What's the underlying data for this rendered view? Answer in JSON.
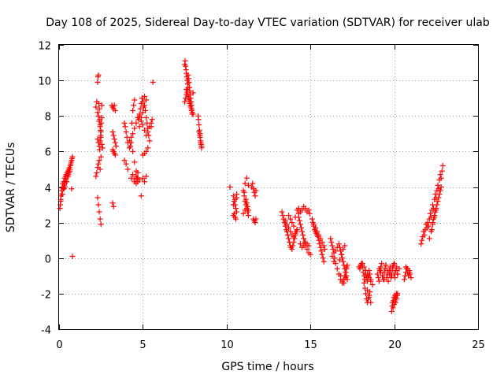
{
  "chart_data": {
    "type": "scatter",
    "title": "Day 108 of 2025, Sidereal Day-to-day VTEC variation (SDTVAR) for receiver ulab",
    "xlabel": "GPS time / hours",
    "ylabel": "SDTVAR / TECUs",
    "xlim": [
      0,
      25
    ],
    "ylim": [
      -4,
      12
    ],
    "xticks": [
      0,
      5,
      10,
      15,
      20,
      25
    ],
    "yticks": [
      -4,
      -2,
      0,
      2,
      4,
      6,
      8,
      10,
      12
    ],
    "xtick_labels": [
      "0",
      "5",
      "10",
      "15",
      "20",
      "25"
    ],
    "ytick_labels": [
      "-4",
      "-2",
      "0",
      "2",
      "4",
      "6",
      "8",
      "10",
      "12"
    ],
    "grid": true,
    "marker": "+",
    "color": "#ff0000",
    "series": [
      {
        "name": "SDTVAR",
        "x": [
          0.05,
          0.08,
          0.1,
          0.12,
          0.15,
          0.18,
          0.2,
          0.22,
          0.25,
          0.28,
          0.3,
          0.33,
          0.35,
          0.38,
          0.4,
          0.43,
          0.45,
          0.48,
          0.5,
          0.53,
          0.55,
          0.58,
          0.6,
          0.62,
          0.65,
          0.68,
          0.7,
          0.72,
          0.75,
          0.78,
          0.8,
          0.1,
          0.2,
          0.3,
          0.35,
          0.45,
          0.55,
          0.65,
          0.75,
          0.8,
          2.2,
          2.25,
          2.3,
          2.32,
          2.35,
          2.38,
          2.4,
          2.42,
          2.45,
          2.48,
          2.5,
          2.52,
          2.55,
          2.2,
          2.25,
          2.3,
          2.35,
          2.4,
          2.45,
          2.5,
          2.3,
          2.35,
          2.4,
          2.42,
          2.45,
          2.48,
          2.3,
          2.35,
          2.4,
          2.45,
          2.5,
          2.55,
          2.6,
          2.3,
          2.35,
          2.4,
          2.45,
          2.5,
          2.55,
          3.15,
          3.2,
          3.25,
          3.3,
          3.35,
          3.2,
          3.25,
          3.3,
          3.35,
          3.4,
          3.2,
          3.25,
          3.3,
          3.35,
          3.2,
          3.25,
          3.9,
          3.95,
          4.0,
          4.05,
          4.1,
          3.9,
          4.0,
          4.1,
          4.2,
          4.25,
          4.3,
          4.35,
          4.4,
          4.45,
          4.5,
          4.2,
          4.3,
          4.4,
          4.5,
          4.6,
          4.65,
          4.7,
          4.75,
          4.8,
          4.85,
          4.9,
          4.95,
          5.0,
          5.05,
          5.1,
          5.15,
          5.2,
          5.25,
          5.3,
          5.35,
          5.4,
          4.5,
          4.6,
          4.7,
          4.8,
          4.9,
          5.0,
          5.1,
          5.2,
          4.4,
          4.5,
          4.6,
          4.7,
          4.8,
          4.9,
          5.0,
          5.1,
          5.2,
          5.3,
          5.4,
          5.5,
          4.3,
          4.4,
          4.5,
          4.6,
          4.7,
          4.8,
          5.0,
          5.1,
          5.2,
          4.9,
          5.0,
          5.1,
          5.2,
          5.3,
          5.6,
          5.55,
          5.5,
          7.5,
          7.52,
          7.55,
          7.58,
          7.6,
          7.62,
          7.65,
          7.68,
          7.7,
          7.72,
          7.75,
          7.78,
          7.8,
          7.82,
          7.85,
          7.88,
          7.9,
          7.92,
          7.95,
          7.6,
          7.65,
          7.7,
          7.75,
          7.8,
          7.85,
          7.9,
          7.95,
          8.0,
          7.5,
          7.55,
          7.6,
          7.65,
          7.7,
          7.75,
          7.8,
          7.85,
          7.9,
          8.0,
          8.3,
          8.32,
          8.35,
          8.38,
          8.4,
          8.42,
          8.45,
          8.48,
          8.5,
          8.35,
          8.4,
          8.45,
          8.5,
          10.2,
          10.4,
          10.45,
          10.5,
          10.55,
          10.6,
          10.4,
          10.5,
          10.6,
          10.4,
          10.5,
          10.6,
          10.45,
          10.55,
          11.0,
          11.05,
          11.1,
          11.15,
          11.2,
          11.25,
          11.3,
          11.1,
          11.2,
          11.3,
          11.05,
          11.15,
          11.25,
          11.0,
          11.1,
          11.2,
          11.3,
          11.5,
          11.55,
          11.6,
          11.65,
          11.7,
          11.75,
          11.6,
          11.65,
          11.7,
          11.75,
          13.3,
          13.35,
          13.4,
          13.45,
          13.5,
          13.55,
          13.6,
          13.65,
          13.7,
          13.75,
          13.8,
          13.85,
          13.9,
          13.95,
          14.0,
          14.05,
          14.1,
          14.15,
          14.2,
          13.5,
          13.6,
          13.7,
          13.8,
          13.9,
          14.0,
          14.1,
          14.2,
          13.7,
          13.8,
          13.9,
          14.0,
          14.1,
          14.2,
          14.3,
          14.3,
          14.4,
          14.5,
          14.6,
          14.7,
          14.8,
          14.9,
          14.95,
          14.4,
          14.5,
          14.6,
          14.7,
          14.8,
          14.9,
          14.3,
          14.35,
          14.4,
          14.45,
          14.5,
          14.55,
          14.6,
          14.65,
          14.7,
          14.8,
          14.9,
          15.0,
          15.1,
          15.15,
          15.2,
          15.25,
          15.3,
          15.35,
          15.4,
          15.45,
          15.5,
          15.55,
          15.6,
          15.65,
          15.7,
          15.75,
          15.8,
          15.85,
          15.2,
          15.3,
          15.4,
          15.5,
          15.6,
          15.7,
          15.8,
          16.2,
          16.25,
          16.3,
          16.35,
          16.4,
          16.45,
          16.5,
          16.6,
          16.7,
          16.8,
          16.9,
          17.0,
          17.05,
          17.1,
          17.15,
          17.2,
          16.7,
          16.75,
          16.8,
          16.85,
          16.9,
          16.95,
          17.0,
          17.05,
          17.1,
          17.15,
          17.2,
          16.75,
          16.85,
          16.95,
          17.05,
          17.15,
          16.8,
          16.9,
          17.0,
          17.1,
          16.3,
          16.4,
          16.5,
          16.6,
          17.9,
          17.95,
          18.0,
          18.05,
          18.1,
          18.15,
          18.2,
          18.25,
          18.3,
          18.35,
          18.4,
          18.45,
          18.5,
          18.55,
          18.6,
          18.2,
          18.25,
          18.3,
          18.35,
          18.4,
          18.45,
          18.5,
          18.55,
          18.0,
          18.1,
          18.2,
          18.3,
          18.4,
          18.5,
          18.6,
          18.7,
          18.4,
          18.5,
          18.6,
          19.0,
          19.05,
          19.1,
          19.15,
          19.2,
          19.25,
          19.3,
          19.35,
          19.4,
          19.45,
          19.5,
          19.55,
          19.6,
          19.65,
          19.7,
          19.75,
          19.8,
          19.85,
          19.9,
          19.95,
          20.0,
          20.05,
          20.1,
          20.15,
          20.2,
          19.1,
          19.2,
          19.3,
          19.4,
          19.5,
          19.6,
          19.7,
          19.8,
          19.9,
          20.0,
          20.1,
          20.2,
          20.3,
          19.85,
          19.88,
          19.9,
          19.93,
          19.95,
          19.98,
          20.0,
          20.03,
          20.05,
          20.08,
          20.1,
          20.13,
          20.15,
          20.18,
          20.2,
          20.6,
          20.65,
          20.7,
          20.75,
          20.8,
          20.85,
          20.9,
          20.95,
          21.0,
          20.7,
          20.8,
          20.9,
          21.6,
          21.65,
          21.7,
          21.75,
          21.8,
          21.85,
          21.9,
          21.95,
          22.0,
          22.05,
          22.1,
          22.15,
          22.2,
          22.25,
          22.3,
          22.35,
          22.4,
          22.45,
          22.5,
          22.55,
          22.6,
          22.65,
          22.7,
          22.75,
          22.8,
          22.85,
          22.9,
          22.3,
          22.4,
          22.5,
          22.6,
          22.7,
          22.8,
          22.25,
          22.35,
          22.45,
          22.55,
          22.65,
          22.75,
          22.1,
          22.2,
          22.3,
          22.4,
          22.5
        ],
        "y": [
          2.8,
          3.0,
          3.3,
          3.5,
          3.8,
          3.6,
          4.0,
          4.2,
          3.9,
          4.3,
          4.1,
          4.5,
          4.2,
          4.6,
          4.4,
          4.7,
          4.3,
          4.8,
          4.6,
          4.9,
          4.7,
          5.0,
          4.8,
          5.1,
          5.0,
          5.2,
          5.3,
          5.4,
          5.5,
          5.6,
          5.7,
          3.2,
          3.6,
          3.9,
          4.0,
          4.3,
          4.6,
          4.9,
          3.9,
          0.1,
          8.5,
          8.8,
          9.9,
          10.2,
          10.3,
          8.7,
          8.4,
          7.8,
          7.5,
          7.2,
          6.8,
          7.6,
          7.9,
          4.6,
          4.8,
          5.1,
          5.3,
          5.5,
          5.0,
          5.7,
          6.7,
          6.5,
          6.3,
          6.1,
          6.6,
          6.9,
          3.4,
          3.0,
          2.6,
          2.2,
          1.9,
          6.4,
          6.2,
          8.2,
          8.0,
          7.7,
          7.4,
          7.1,
          8.6,
          8.6,
          8.5,
          8.4,
          8.6,
          8.3,
          7.1,
          6.9,
          6.7,
          6.5,
          6.3,
          3.1,
          2.9,
          5.9,
          5.8,
          6.1,
          6.0,
          7.6,
          7.4,
          7.1,
          6.8,
          6.5,
          5.5,
          5.3,
          5.0,
          6.6,
          6.3,
          6.8,
          7.6,
          8.3,
          8.6,
          8.9,
          6.2,
          6.5,
          6.0,
          5.4,
          4.9,
          4.5,
          4.3,
          7.8,
          8.0,
          8.4,
          8.7,
          9.0,
          8.8,
          8.5,
          9.1,
          8.3,
          7.9,
          7.6,
          7.3,
          6.9,
          6.6,
          4.4,
          4.2,
          4.5,
          7.4,
          7.9,
          8.2,
          8.6,
          8.9,
          7.0,
          7.3,
          7.6,
          7.9,
          8.1,
          7.7,
          7.5,
          7.2,
          6.9,
          7.1,
          7.4,
          7.6,
          4.5,
          4.7,
          4.3,
          4.6,
          4.8,
          4.4,
          4.5,
          4.3,
          4.6,
          3.5,
          5.8,
          5.9,
          6.0,
          6.2,
          9.9,
          7.8,
          7.4,
          10.9,
          11.1,
          10.8,
          10.6,
          10.4,
          10.2,
          10.0,
          9.8,
          10.3,
          10.1,
          9.9,
          9.6,
          9.4,
          9.2,
          9.0,
          8.8,
          8.6,
          8.4,
          8.2,
          9.5,
          9.3,
          9.1,
          8.9,
          8.7,
          8.5,
          8.3,
          8.1,
          9.3,
          8.8,
          9.0,
          9.2,
          9.4,
          9.6,
          9.0,
          8.8,
          8.6,
          8.4,
          8.1,
          8.0,
          7.8,
          7.5,
          7.2,
          7.0,
          6.8,
          6.6,
          6.4,
          6.2,
          7.1,
          6.9,
          6.5,
          6.3,
          4.0,
          3.5,
          3.2,
          3.0,
          2.8,
          2.6,
          2.4,
          2.3,
          3.6,
          3.0,
          3.3,
          3.4,
          2.5,
          2.2,
          3.8,
          3.5,
          3.2,
          3.0,
          2.8,
          2.6,
          2.4,
          4.2,
          4.5,
          4.1,
          3.7,
          3.3,
          2.9,
          2.5,
          2.7,
          3.1,
          2.7,
          4.0,
          4.2,
          3.9,
          3.7,
          3.5,
          3.8,
          2.2,
          2.1,
          2.0,
          2.2,
          2.6,
          2.4,
          2.2,
          2.0,
          1.8,
          1.6,
          1.5,
          1.3,
          1.1,
          0.9,
          0.7,
          0.6,
          0.5,
          0.7,
          0.9,
          1.1,
          1.3,
          1.5,
          1.6,
          2.1,
          1.9,
          1.7,
          1.5,
          1.3,
          1.2,
          1.4,
          1.6,
          2.4,
          2.2,
          2.0,
          1.8,
          2.3,
          2.7,
          2.5,
          2.8,
          2.6,
          2.7,
          2.9,
          2.8,
          2.6,
          2.7,
          2.5,
          0.8,
          0.6,
          0.7,
          0.9,
          0.8,
          0.7,
          2.3,
          2.1,
          1.9,
          1.7,
          1.5,
          1.3,
          1.1,
          0.9,
          0.7,
          0.5,
          0.3,
          0.2,
          2.2,
          2.0,
          1.8,
          1.6,
          1.5,
          1.4,
          1.3,
          1.2,
          1.0,
          0.8,
          0.6,
          0.4,
          0.2,
          0.0,
          -0.2,
          0.5,
          1.9,
          1.7,
          1.5,
          1.3,
          1.1,
          0.9,
          0.7,
          1.1,
          0.9,
          0.7,
          0.5,
          0.3,
          0.0,
          -0.3,
          -0.6,
          -0.9,
          -1.2,
          -1.4,
          -1.2,
          -1.0,
          -0.8,
          -0.6,
          -0.4,
          0.8,
          0.6,
          0.4,
          0.2,
          0.0,
          -0.2,
          -0.4,
          -0.6,
          -0.8,
          -1.0,
          -1.2,
          -0.1,
          0.2,
          0.5,
          0.7,
          -0.5,
          -1.0,
          -1.3,
          -1.4,
          -1.1,
          0.1,
          -0.2,
          0.4,
          0.6,
          -0.5,
          -0.6,
          -0.4,
          -0.3,
          -0.5,
          -0.8,
          -1.0,
          -1.2,
          -0.9,
          -1.1,
          -1.3,
          -1.0,
          -0.7,
          -0.9,
          -1.2,
          -1.4,
          -1.7,
          -2.0,
          -2.3,
          -2.5,
          -2.3,
          -2.1,
          -1.9,
          -0.4,
          -0.3,
          -0.5,
          -0.7,
          -0.9,
          -1.1,
          -1.3,
          -1.5,
          -1.8,
          -2.2,
          -2.5,
          -0.9,
          -1.1,
          -1.3,
          -0.7,
          -0.5,
          -0.3,
          -1.0,
          -1.2,
          -0.8,
          -0.6,
          -0.4,
          -1.1,
          -0.9,
          -1.3,
          -0.7,
          -0.5,
          -0.8,
          -1.0,
          -0.6,
          -0.4,
          -0.9,
          -1.1,
          -0.7,
          -0.5,
          -0.9,
          -0.6,
          -0.8,
          -1.0,
          -1.2,
          -0.4,
          -0.7,
          -0.9,
          -1.1,
          -0.5,
          -0.3,
          -0.7,
          -0.9,
          -0.6,
          -3.0,
          -2.7,
          -2.5,
          -2.8,
          -2.4,
          -2.2,
          -2.6,
          -2.3,
          -2.1,
          -2.5,
          -2.2,
          -2.0,
          -2.3,
          -2.1,
          -2.0,
          -1.2,
          -1.0,
          -0.8,
          -0.6,
          -0.8,
          -1.0,
          -0.7,
          -0.9,
          -1.1,
          -0.5,
          -0.6,
          -0.8,
          0.8,
          1.0,
          1.2,
          1.5,
          1.3,
          1.6,
          1.9,
          1.7,
          2.0,
          1.8,
          2.2,
          2.5,
          2.3,
          2.7,
          3.0,
          2.8,
          3.3,
          3.6,
          3.4,
          3.8,
          4.1,
          3.9,
          4.4,
          4.7,
          4.5,
          4.9,
          5.2,
          2.0,
          2.4,
          2.8,
          3.2,
          3.6,
          4.0,
          1.6,
          2.2,
          2.6,
          3.0,
          3.4,
          3.8,
          1.1,
          1.5,
          1.9,
          2.3,
          2.7
        ]
      }
    ]
  }
}
